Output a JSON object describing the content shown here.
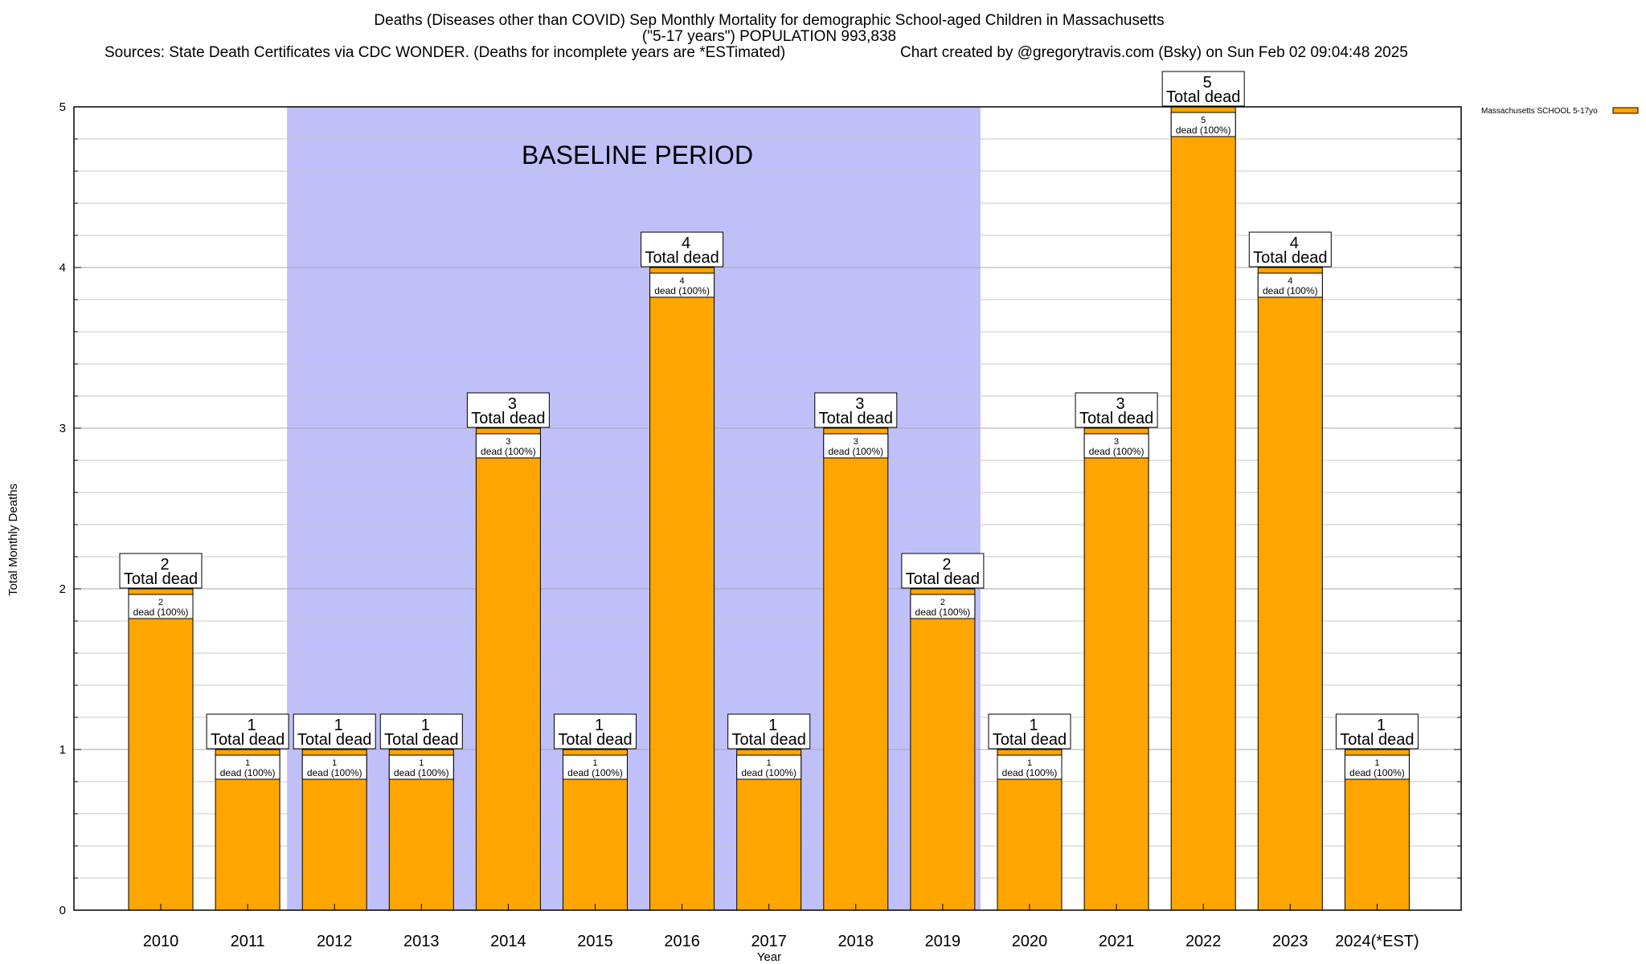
{
  "chart_data": {
    "type": "bar",
    "title": "Deaths (Diseases other than COVID) Sep Monthly Mortality for demographic School-aged Children in Massachusetts",
    "subtitle": "(\"5-17 years\") POPULATION 993,838",
    "sources": "Sources: State Death Certificates via CDC WONDER. (Deaths for incomplete years are *ESTimated)",
    "credit": "Chart created by @gregorytravis.com (Bsky) on Sun Feb 02 09:04:48 2025",
    "xlabel": "Year",
    "ylabel": "Total Monthly Deaths",
    "ylim": [
      0,
      5
    ],
    "yticks": [
      "0",
      "1",
      "2",
      "3",
      "4",
      "5"
    ],
    "grid": true,
    "legend_position": "top-right",
    "categories": [
      "2010",
      "2011",
      "2012",
      "2013",
      "2014",
      "2015",
      "2016",
      "2017",
      "2018",
      "2019",
      "2020",
      "2021",
      "2022",
      "2023",
      "2024(*EST)"
    ],
    "series": [
      {
        "name": "Massachusetts SCHOOL 5-17yo",
        "color": "#ffa500",
        "values": [
          2,
          1,
          1,
          1,
          3,
          1,
          4,
          1,
          3,
          2,
          1,
          3,
          5,
          4,
          1
        ]
      }
    ],
    "bar_labels": {
      "total_top": [
        "2",
        "1",
        "1",
        "1",
        "3",
        "1",
        "4",
        "1",
        "3",
        "2",
        "1",
        "3",
        "5",
        "4",
        "1"
      ],
      "total_bottom": "Total dead",
      "inner_count": [
        "2",
        "1",
        "1",
        "1",
        "3",
        "1",
        "4",
        "1",
        "3",
        "2",
        "1",
        "3",
        "5",
        "4",
        "1"
      ],
      "inner_text": "dead (100%)"
    },
    "baseline": {
      "label": "BASELINE PERIOD",
      "start": "2012",
      "end": "2019",
      "color": "#bfbffa"
    }
  }
}
